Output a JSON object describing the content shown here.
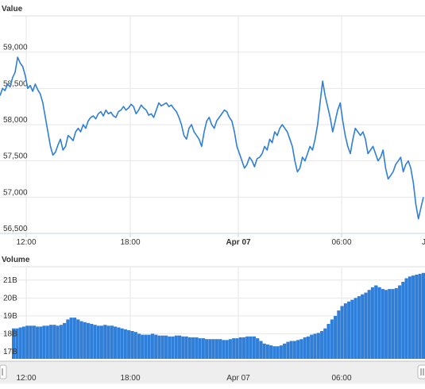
{
  "chart_data": [
    {
      "type": "line",
      "title": "Value",
      "ylabel": "Value",
      "yticks": [
        "56,500",
        "57,000",
        "57,500",
        "58,000",
        "58,500",
        "59,000"
      ],
      "ylim": [
        56500,
        59500
      ],
      "xticks": [
        "12:00",
        "18:00",
        "Apr 07",
        "06:00"
      ],
      "grid": true,
      "line_color": "#2f7ed8",
      "series": [
        {
          "values": [
            58400,
            58500,
            58470,
            58560,
            58520,
            58650,
            58720,
            58930,
            58850,
            58800,
            58680,
            58500,
            58540,
            58460,
            58560,
            58480,
            58420,
            58300,
            58100,
            57900,
            57700,
            57580,
            57620,
            57720,
            57800,
            57650,
            57700,
            57850,
            57820,
            57780,
            57900,
            57950,
            57900,
            58000,
            57950,
            58050,
            58100,
            58120,
            58080,
            58150,
            58180,
            58120,
            58200,
            58150,
            58170,
            58120,
            58100,
            58180,
            58200,
            58250,
            58200,
            58230,
            58280,
            58250,
            58150,
            58200,
            58270,
            58230,
            58200,
            58130,
            58150,
            58100,
            58200,
            58300,
            58260,
            58280,
            58300,
            58250,
            58270,
            58220,
            58180,
            58100,
            58000,
            57850,
            57800,
            57950,
            58000,
            57900,
            57850,
            57800,
            57700,
            57900,
            58050,
            58100,
            58000,
            57950,
            58050,
            58100,
            58150,
            58200,
            58180,
            58100,
            58050,
            57900,
            57700,
            57600,
            57500,
            57400,
            57450,
            57550,
            57500,
            57420,
            57530,
            57550,
            57600,
            57700,
            57650,
            57800,
            57750,
            57900,
            57850,
            57950,
            58000,
            57950,
            57900,
            57800,
            57700,
            57500,
            57350,
            57400,
            57550,
            57500,
            57600,
            57700,
            57650,
            57800,
            58000,
            58300,
            58600,
            58400,
            58250,
            58100,
            57900,
            58050,
            58200,
            58300,
            58050,
            57850,
            57700,
            57600,
            57800,
            57950,
            57900,
            57850,
            57900,
            57800,
            57600,
            57650,
            57700,
            57600,
            57500,
            57550,
            57650,
            57400,
            57250,
            57300,
            57350,
            57450,
            57500,
            57550,
            57350,
            57450,
            57500,
            57400,
            57200,
            56900,
            56700,
            56850,
            57000
          ]
        }
      ]
    },
    {
      "type": "area",
      "title": "Volume",
      "ylabel": "Volume",
      "yticks": [
        "17B",
        "18B",
        "19B",
        "20B",
        "21B"
      ],
      "ylim": [
        16.6,
        21.7
      ],
      "xticks": [
        "12:00",
        "18:00",
        "Apr 07",
        "06:00"
      ],
      "grid": true,
      "color": "#2f7ed8",
      "series": [
        {
          "values": [
            18.3,
            18.3,
            18.35,
            18.4,
            18.45,
            18.45,
            18.45,
            18.4,
            18.4,
            18.45,
            18.45,
            18.5,
            18.5,
            18.45,
            18.5,
            18.6,
            18.8,
            18.9,
            18.9,
            18.8,
            18.7,
            18.65,
            18.6,
            18.55,
            18.5,
            18.45,
            18.45,
            18.5,
            18.45,
            18.45,
            18.4,
            18.35,
            18.3,
            18.25,
            18.2,
            18.15,
            18.1,
            18.0,
            17.95,
            17.95,
            17.95,
            18.0,
            17.95,
            17.9,
            17.9,
            17.9,
            17.85,
            17.85,
            17.9,
            17.9,
            17.85,
            17.85,
            17.8,
            17.8,
            17.8,
            17.75,
            17.75,
            17.7,
            17.7,
            17.7,
            17.7,
            17.7,
            17.65,
            17.65,
            17.7,
            17.75,
            17.75,
            17.8,
            17.8,
            17.85,
            17.85,
            17.85,
            17.75,
            17.6,
            17.45,
            17.4,
            17.35,
            17.3,
            17.3,
            17.35,
            17.45,
            17.55,
            17.6,
            17.6,
            17.65,
            17.7,
            17.8,
            17.85,
            17.95,
            18.0,
            18.05,
            18.15,
            18.3,
            18.55,
            18.8,
            19.0,
            19.3,
            19.55,
            19.7,
            19.8,
            19.9,
            20.0,
            20.1,
            20.2,
            20.3,
            20.45,
            20.6,
            20.7,
            20.6,
            20.5,
            20.45,
            20.5,
            20.5,
            20.55,
            20.7,
            20.9,
            21.1,
            21.2,
            21.25,
            21.3,
            21.35,
            21.4
          ]
        }
      ]
    }
  ],
  "navigator": {
    "labels": [
      "12:00",
      "18:00",
      "Apr 07",
      "06:00"
    ]
  }
}
